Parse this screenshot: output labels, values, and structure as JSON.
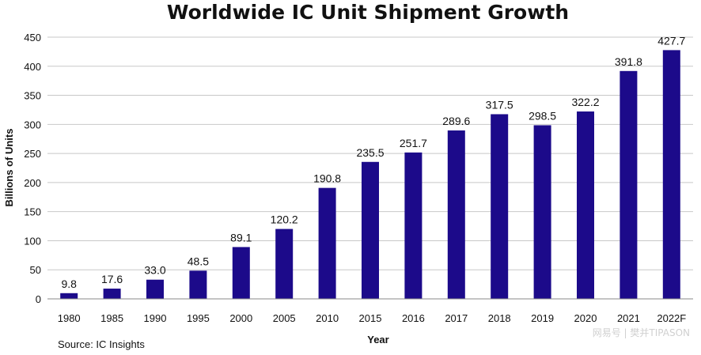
{
  "chart_data": {
    "type": "bar",
    "title": "Worldwide IC Unit Shipment Growth",
    "xlabel": "Year",
    "ylabel": "Billions of Units",
    "categories": [
      "1980",
      "1985",
      "1990",
      "1995",
      "2000",
      "2005",
      "2010",
      "2015",
      "2016",
      "2017",
      "2018",
      "2019",
      "2020",
      "2021",
      "2022F"
    ],
    "values": [
      9.8,
      17.6,
      33.0,
      48.5,
      89.1,
      120.2,
      190.8,
      235.5,
      251.7,
      289.6,
      317.5,
      298.5,
      322.2,
      391.8,
      427.7
    ],
    "value_labels": [
      "9.8",
      "17.6",
      "33.0",
      "48.5",
      "89.1",
      "120.2",
      "190.8",
      "235.5",
      "251.7",
      "289.6",
      "317.5",
      "298.5",
      "322.2",
      "391.8",
      "427.7"
    ],
    "ylim": [
      0,
      450
    ],
    "yticks": [
      "0",
      "50",
      "100",
      "150",
      "200",
      "250",
      "300",
      "350",
      "400",
      "450"
    ],
    "grid": true,
    "legend": "none",
    "bar_color": "#1c0a8a",
    "grid_color": "#c8c8c8",
    "source": "Source:  IC Insights",
    "watermark": "网易号 | 樊并TIPASON"
  }
}
